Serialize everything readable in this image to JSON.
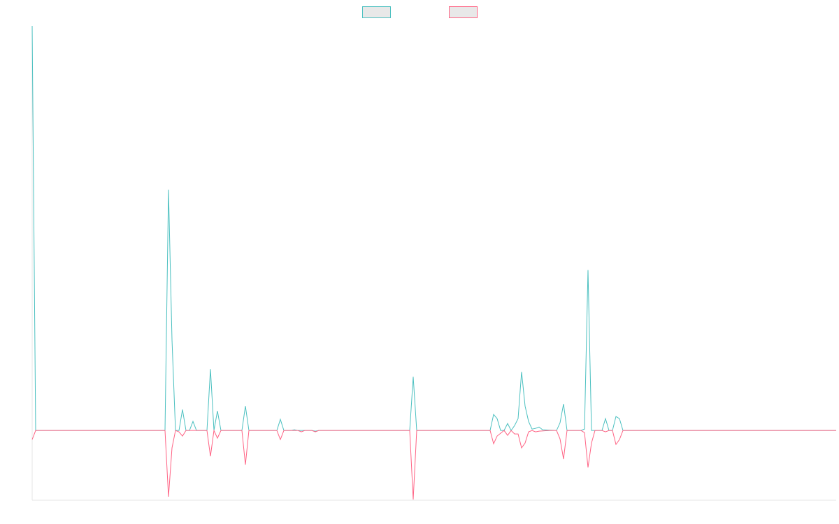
{
  "chart_data": {
    "type": "line",
    "title": "",
    "xlabel": "",
    "ylabel": "",
    "grid": false,
    "legend_position": "top-center",
    "x_range": [
      0,
      230
    ],
    "y_range": [
      -100,
      580
    ],
    "series": [
      {
        "color": "#4bc0c0",
        "fill": "#e8e8e8",
        "points": [
          [
            0,
            580
          ],
          [
            1,
            0
          ],
          [
            38,
            0
          ],
          [
            39,
            345
          ],
          [
            40,
            130
          ],
          [
            41,
            0
          ],
          [
            42,
            0
          ],
          [
            43,
            30
          ],
          [
            44,
            0
          ],
          [
            45,
            0
          ],
          [
            46,
            13
          ],
          [
            47,
            0
          ],
          [
            50,
            0
          ],
          [
            51,
            88
          ],
          [
            52,
            0
          ],
          [
            53,
            28
          ],
          [
            54,
            0
          ],
          [
            60,
            0
          ],
          [
            61,
            35
          ],
          [
            62,
            0
          ],
          [
            70,
            0
          ],
          [
            71,
            16
          ],
          [
            72,
            0
          ],
          [
            74,
            0
          ],
          [
            75,
            1
          ],
          [
            76,
            0
          ],
          [
            80,
            0
          ],
          [
            81,
            -1
          ],
          [
            82,
            0
          ],
          [
            108,
            0
          ],
          [
            109,
            77
          ],
          [
            110,
            0
          ],
          [
            131,
            0
          ],
          [
            132,
            23
          ],
          [
            133,
            17
          ],
          [
            134,
            0
          ],
          [
            135,
            0
          ],
          [
            136,
            10
          ],
          [
            137,
            0
          ],
          [
            138,
            7
          ],
          [
            139,
            17
          ],
          [
            140,
            84
          ],
          [
            141,
            35
          ],
          [
            142,
            13
          ],
          [
            143,
            2
          ],
          [
            144,
            3
          ],
          [
            145,
            5
          ],
          [
            146,
            1
          ],
          [
            150,
            0
          ],
          [
            151,
            11
          ],
          [
            152,
            38
          ],
          [
            153,
            0
          ],
          [
            157,
            0
          ],
          [
            158,
            2
          ],
          [
            159,
            230
          ],
          [
            160,
            0
          ],
          [
            163,
            0
          ],
          [
            164,
            17
          ],
          [
            165,
            0
          ],
          [
            166,
            0
          ],
          [
            167,
            20
          ],
          [
            168,
            17
          ],
          [
            169,
            0
          ],
          [
            230,
            0
          ]
        ]
      },
      {
        "color": "#ff6384",
        "fill": "#e8e8e8",
        "points": [
          [
            0,
            -13
          ],
          [
            1,
            0
          ],
          [
            38,
            0
          ],
          [
            39,
            -95
          ],
          [
            40,
            -25
          ],
          [
            41,
            0
          ],
          [
            42,
            -2
          ],
          [
            43,
            -8
          ],
          [
            44,
            0
          ],
          [
            50,
            0
          ],
          [
            51,
            -37
          ],
          [
            52,
            0
          ],
          [
            53,
            -11
          ],
          [
            54,
            0
          ],
          [
            60,
            0
          ],
          [
            61,
            -49
          ],
          [
            62,
            0
          ],
          [
            70,
            0
          ],
          [
            71,
            -13
          ],
          [
            72,
            0
          ],
          [
            76,
            0
          ],
          [
            77,
            -2
          ],
          [
            78,
            0
          ],
          [
            80,
            0
          ],
          [
            81,
            -2
          ],
          [
            82,
            0
          ],
          [
            108,
            0
          ],
          [
            109,
            -99
          ],
          [
            110,
            0
          ],
          [
            131,
            0
          ],
          [
            132,
            -19
          ],
          [
            133,
            -8
          ],
          [
            134,
            -4
          ],
          [
            135,
            0
          ],
          [
            136,
            -7
          ],
          [
            137,
            0
          ],
          [
            138,
            -5
          ],
          [
            139,
            -5
          ],
          [
            140,
            -25
          ],
          [
            141,
            -18
          ],
          [
            142,
            -2
          ],
          [
            143,
            0
          ],
          [
            144,
            -2
          ],
          [
            145,
            -1
          ],
          [
            148,
            0
          ],
          [
            150,
            0
          ],
          [
            151,
            -12
          ],
          [
            152,
            -41
          ],
          [
            153,
            0
          ],
          [
            157,
            0
          ],
          [
            158,
            -3
          ],
          [
            159,
            -53
          ],
          [
            160,
            -18
          ],
          [
            161,
            0
          ],
          [
            163,
            0
          ],
          [
            164,
            -2
          ],
          [
            165,
            0
          ],
          [
            166,
            0
          ],
          [
            167,
            -20
          ],
          [
            168,
            -13
          ],
          [
            169,
            0
          ],
          [
            230,
            0
          ]
        ]
      }
    ]
  }
}
